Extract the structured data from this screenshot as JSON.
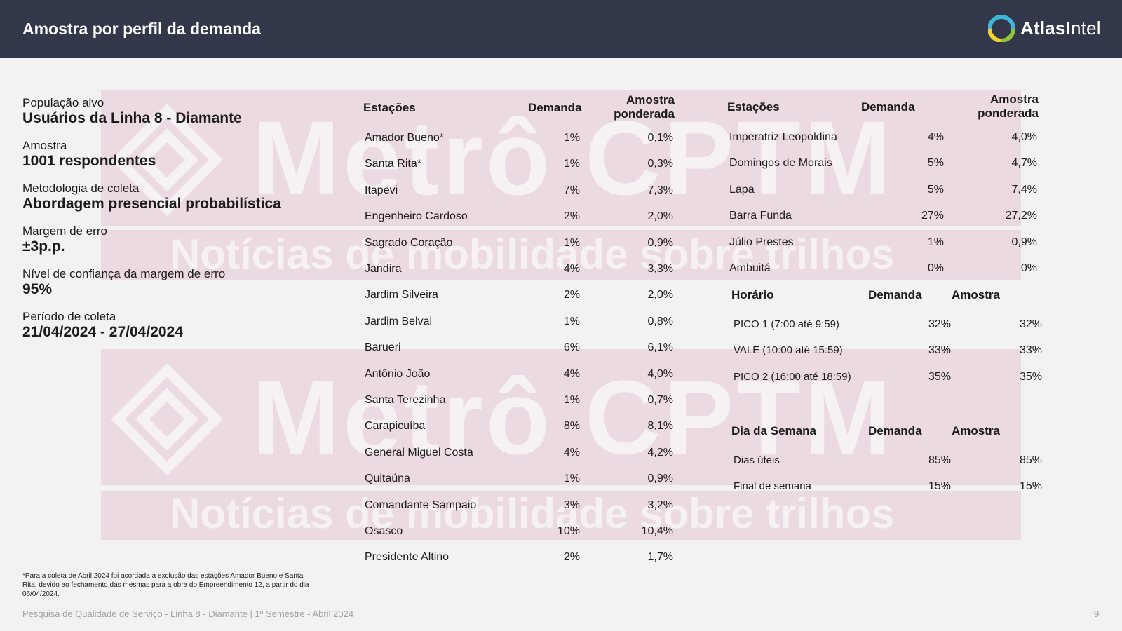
{
  "header": {
    "title": "Amostra por perfil da demanda",
    "logo_text_a": "Atlas",
    "logo_text_b": "Intel"
  },
  "watermark": {
    "big": "Metrô CPTM",
    "small": "Notícias de mobilidade sobre trilhos"
  },
  "info": [
    {
      "label": "População alvo",
      "value": "Usuários da Linha 8 - Diamante"
    },
    {
      "label": "Amostra",
      "value": "1001 respondentes"
    },
    {
      "label": "Metodologia de coleta",
      "value": "Abordagem presencial probabilística"
    },
    {
      "label": "Margem de erro",
      "value": "±3p.p."
    },
    {
      "label": "Nível de confiança da margem de erro",
      "value": "95%"
    },
    {
      "label": "Período de coleta",
      "value": "21/04/2024 - 27/04/2024"
    }
  ],
  "stations_table_1": {
    "headers": {
      "station": "Estações",
      "demand": "Demanda",
      "sample_line1": "Amostra",
      "sample_line2": "ponderada"
    },
    "rows": [
      [
        "Amador Bueno*",
        "1%",
        "0,1%"
      ],
      [
        "Santa Rita*",
        "1%",
        "0,3%"
      ],
      [
        "Itapevi",
        "7%",
        "7,3%"
      ],
      [
        "Engenheiro Cardoso",
        "2%",
        "2,0%"
      ],
      [
        "Sagrado Coração",
        "1%",
        "0,9%"
      ],
      [
        "Jandira",
        "4%",
        "3,3%"
      ],
      [
        "Jardim Silveira",
        "2%",
        "2,0%"
      ],
      [
        "Jardim Belval",
        "1%",
        "0,8%"
      ],
      [
        "Barueri",
        "6%",
        "6,1%"
      ],
      [
        "Antônio João",
        "4%",
        "4,0%"
      ],
      [
        "Santa Terezinha",
        "1%",
        "0,7%"
      ],
      [
        "Carapicuíba",
        "8%",
        "8,1%"
      ],
      [
        "General Miguel Costa",
        "4%",
        "4,2%"
      ],
      [
        "Quitaúna",
        "1%",
        "0,9%"
      ],
      [
        "Comandante Sampaio",
        "3%",
        "3,2%"
      ],
      [
        "Osasco",
        "10%",
        "10,4%"
      ],
      [
        "Presidente Altino",
        "2%",
        "1,7%"
      ]
    ]
  },
  "stations_table_2": {
    "headers": {
      "station": "Estações",
      "demand": "Demanda",
      "sample_line1": "Amostra",
      "sample_line2": "ponderada"
    },
    "rows": [
      [
        "Imperatriz Leopoldina",
        "4%",
        "4,0%"
      ],
      [
        "Domingos de Morais",
        "5%",
        "4,7%"
      ],
      [
        "Lapa",
        "5%",
        "7,4%"
      ],
      [
        "Barra Funda",
        "27%",
        "27,2%"
      ],
      [
        "Júlio Prestes",
        "1%",
        "0,9%"
      ],
      [
        "Ambuitá",
        "0%",
        "0%"
      ]
    ]
  },
  "time_table": {
    "headers": {
      "label": "Horário",
      "demand": "Demanda",
      "sample": "Amostra"
    },
    "rows": [
      [
        "PICO 1 (7:00 até 9:59)",
        "32%",
        "32%"
      ],
      [
        "VALE (10:00 até 15:59)",
        "33%",
        "33%"
      ],
      [
        "PICO 2 (16:00 até 18:59)",
        "35%",
        "35%"
      ]
    ]
  },
  "weekday_table": {
    "headers": {
      "label": "Dia da Semana",
      "demand": "Demanda",
      "sample": "Amostra"
    },
    "rows": [
      [
        "Dias úteis",
        "85%",
        "85%"
      ],
      [
        "Final de semana",
        "15%",
        "15%"
      ]
    ]
  },
  "footnote": "*Para a coleta de Abril 2024 foi acordada a exclusão das estações Amador Bueno e Santa Rita, devido ao fechamento das mesmas para a obra do Empreendimento 12, a partir do dia 06/04/2024.",
  "footer": {
    "text": "Pesquisa de Qualidade de Serviço - Linha 8 - Diamante | 1º Semestre - Abril 2024",
    "page": "9"
  },
  "colors": {
    "header_bg": "#323749",
    "watermark": "#ead6de",
    "logo_blue": "#3fb6d8",
    "logo_green": "#8cc63f",
    "logo_yellow": "#f2d230"
  }
}
